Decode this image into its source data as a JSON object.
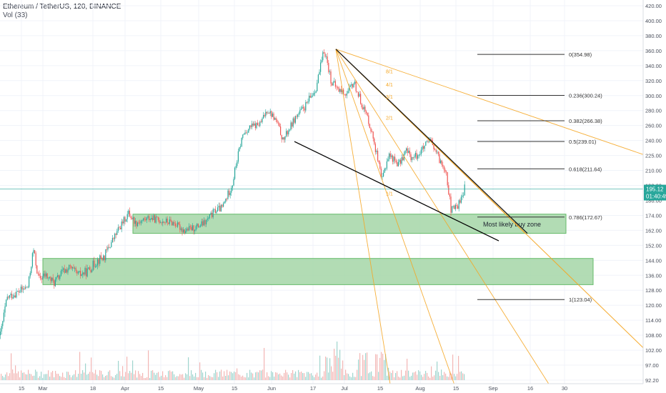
{
  "header": {
    "symbol_line": "Ethereum / TetherUS, 120, BINANCE",
    "volume_label": "Vol (33)"
  },
  "colors": {
    "price_line": "#26a69a",
    "up_candle": "#26a69a",
    "down_candle": "#ef5350",
    "fan": "#f5a623",
    "zone_fill": "#a5d6a7",
    "zone_border": "#66bb6a",
    "trendline": "#000000"
  },
  "chart_data": {
    "type": "candlestick",
    "exchange": "BINANCE",
    "interval": "120",
    "y_axis": {
      "scale": "log",
      "ticks": [
        "420.00",
        "400.00",
        "380.00",
        "360.00",
        "340.00",
        "320.00",
        "300.00",
        "280.00",
        "260.00",
        "240.00",
        "225.00",
        "210.00",
        "198.00",
        "186.00",
        "174.00",
        "162.00",
        "152.00",
        "144.00",
        "136.00",
        "128.00",
        "120.00",
        "114.00",
        "108.00",
        "102.00",
        "97.00",
        "92.20"
      ]
    },
    "x_axis": {
      "ticks": [
        "15",
        "Mar",
        "18",
        "Apr",
        "15",
        "May",
        "15",
        "Jun",
        "17",
        "Jul",
        "15",
        "Aug",
        "15",
        "Sep",
        "16",
        "30"
      ]
    },
    "last_price": "195.12",
    "countdown": "01:40:49",
    "price_path": [
      [
        0,
        108
      ],
      [
        0.02,
        124
      ],
      [
        0.05,
        127
      ],
      [
        0.08,
        130
      ],
      [
        0.095,
        150
      ],
      [
        0.11,
        134
      ],
      [
        0.13,
        136
      ],
      [
        0.155,
        132
      ],
      [
        0.18,
        138
      ],
      [
        0.2,
        140
      ],
      [
        0.225,
        136
      ],
      [
        0.25,
        138
      ],
      [
        0.28,
        144
      ],
      [
        0.3,
        146
      ],
      [
        0.33,
        158
      ],
      [
        0.37,
        176
      ],
      [
        0.39,
        168
      ],
      [
        0.43,
        172
      ],
      [
        0.46,
        170
      ],
      [
        0.5,
        168
      ],
      [
        0.53,
        162
      ],
      [
        0.56,
        164
      ],
      [
        0.59,
        168
      ],
      [
        0.62,
        178
      ],
      [
        0.64,
        180
      ],
      [
        0.67,
        200
      ],
      [
        0.7,
        248
      ],
      [
        0.72,
        258
      ],
      [
        0.75,
        262
      ],
      [
        0.77,
        282
      ],
      [
        0.79,
        270
      ],
      [
        0.8,
        262
      ],
      [
        0.815,
        240
      ],
      [
        0.85,
        270
      ],
      [
        0.88,
        286
      ],
      [
        0.91,
        310
      ],
      [
        0.935,
        362
      ],
      [
        0.955,
        318
      ],
      [
        0.975,
        308
      ],
      [
        1.0,
        302
      ],
      [
        1.02,
        318
      ],
      [
        1.04,
        292
      ],
      [
        1.06,
        270
      ],
      [
        1.08,
        236
      ],
      [
        1.1,
        200
      ],
      [
        1.12,
        226
      ],
      [
        1.15,
        216
      ],
      [
        1.17,
        230
      ],
      [
        1.19,
        222
      ],
      [
        1.21,
        228
      ],
      [
        1.24,
        240
      ],
      [
        1.27,
        218
      ],
      [
        1.285,
        212
      ],
      [
        1.3,
        178
      ],
      [
        1.32,
        182
      ],
      [
        1.34,
        196
      ]
    ],
    "fib_levels": [
      {
        "label": "0(354.98)",
        "value": 354.98
      },
      {
        "label": "0.236(300.24)",
        "value": 300.24
      },
      {
        "label": "0.382(266.38)",
        "value": 266.38
      },
      {
        "label": "0.5(239.01)",
        "value": 239.01
      },
      {
        "label": "0.618(211.64)",
        "value": 211.64
      },
      {
        "label": "0.786(172.67)",
        "value": 172.67
      },
      {
        "label": "1(123.04)",
        "value": 123.04
      }
    ],
    "fan_labels": [
      "8/1",
      "4/1",
      "3/1",
      "2/1",
      "1/1"
    ],
    "zones": [
      {
        "label": "Most likely buy zone",
        "top": 175,
        "bottom": 160
      },
      {
        "label": "",
        "top": 145,
        "bottom": 131
      }
    ],
    "trendline": {
      "from_price": 239,
      "to_price": 155
    }
  }
}
